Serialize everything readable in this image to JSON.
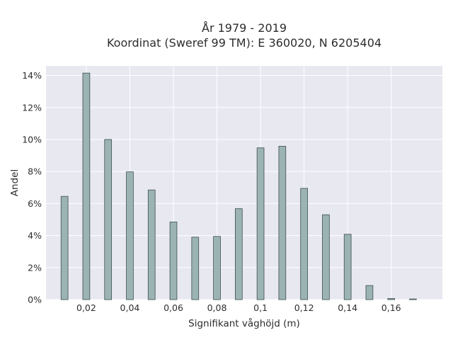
{
  "chart_data": {
    "type": "bar",
    "title": "År 1979 - 2019",
    "subtitle": "Koordinat (Sweref 99 TM): E 360020, N 6205404",
    "xlabel": "Signifikant våghöjd (m)",
    "ylabel": "Andel",
    "x": [
      0.01,
      0.02,
      0.03,
      0.04,
      0.05,
      0.06,
      0.07,
      0.08,
      0.09,
      0.1,
      0.11,
      0.12,
      0.13,
      0.14,
      0.15,
      0.16,
      0.17
    ],
    "values": [
      6.45,
      14.15,
      10.0,
      7.98,
      6.85,
      4.85,
      3.9,
      3.95,
      5.68,
      9.48,
      9.58,
      6.95,
      5.3,
      4.08,
      0.88,
      0.07,
      0.04
    ],
    "xlim": [
      0.0015,
      0.1835
    ],
    "ylim": [
      0,
      14.6
    ],
    "x_ticks": [
      {
        "value": 0.02,
        "label": "0,02"
      },
      {
        "value": 0.04,
        "label": "0,04"
      },
      {
        "value": 0.06,
        "label": "0,06"
      },
      {
        "value": 0.08,
        "label": "0,08"
      },
      {
        "value": 0.1,
        "label": "0,1"
      },
      {
        "value": 0.12,
        "label": "0,12"
      },
      {
        "value": 0.14,
        "label": "0,14"
      },
      {
        "value": 0.16,
        "label": "0,16"
      }
    ],
    "y_ticks": [
      {
        "value": 0,
        "label": "0%"
      },
      {
        "value": 2,
        "label": "2%"
      },
      {
        "value": 4,
        "label": "4%"
      },
      {
        "value": 6,
        "label": "6%"
      },
      {
        "value": 8,
        "label": "8%"
      },
      {
        "value": 10,
        "label": "10%"
      },
      {
        "value": 12,
        "label": "12%"
      },
      {
        "value": 14,
        "label": "14%"
      }
    ],
    "grid": true,
    "colors": {
      "background": "#e8e8f1",
      "grid": "#ffffff",
      "bar_fill": "#9cb3b3",
      "bar_stroke": "#3d4f4f"
    }
  }
}
